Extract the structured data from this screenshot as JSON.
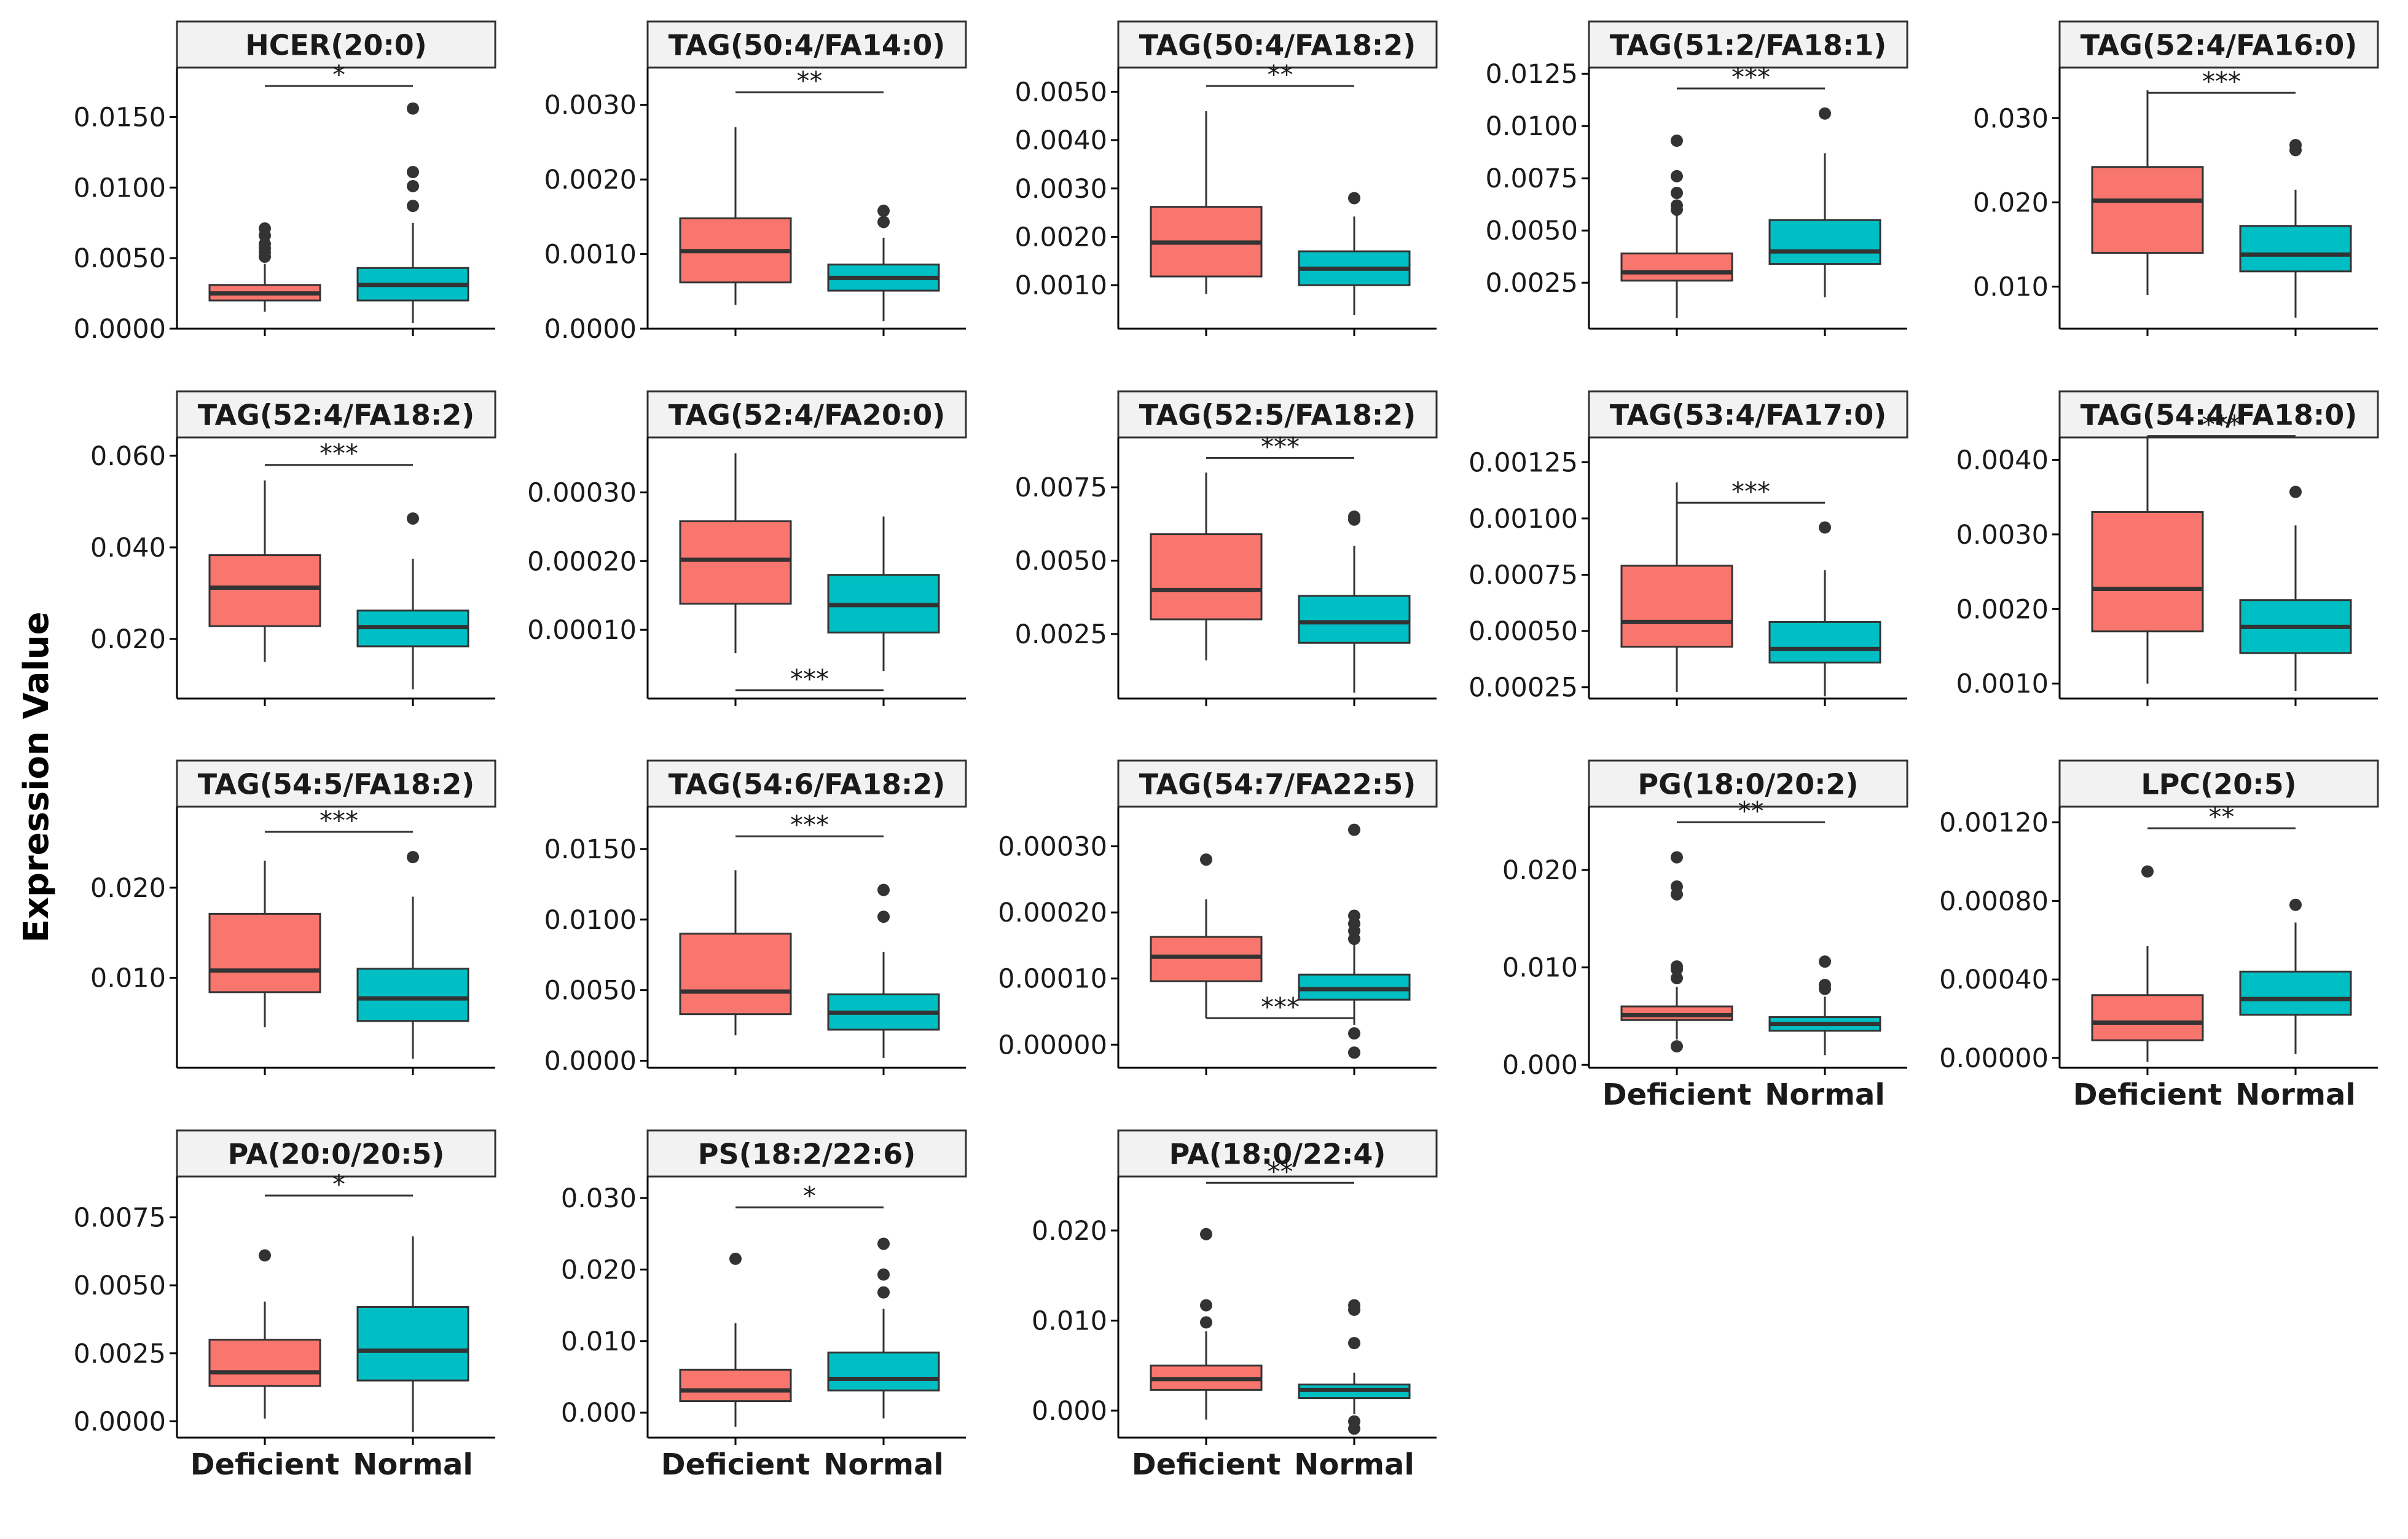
{
  "figure": {
    "ylabel": "Expression Value",
    "groups": [
      "Deficient",
      "Normal"
    ],
    "colors": {
      "deficient": "#F8766D",
      "normal": "#00BFC4"
    }
  },
  "chart_data": [
    {
      "type": "box",
      "title": "HCER(20:0)",
      "ylim": [
        0,
        0.0185
      ],
      "ticks": [
        "0.0000",
        "0.0050",
        "0.0100",
        "0.0150"
      ],
      "categories": [
        "Deficient",
        "Normal"
      ],
      "boxes": [
        {
          "q1": 0.002,
          "median": 0.0025,
          "q3": 0.0031,
          "wlo": 0.0012,
          "whi": 0.0046,
          "outliers": [
            0.0051,
            0.0054,
            0.0057,
            0.006,
            0.0066,
            0.0071
          ]
        },
        {
          "q1": 0.002,
          "median": 0.0031,
          "q3": 0.0043,
          "wlo": 0.0004,
          "whi": 0.0075,
          "outliers": [
            0.0087,
            0.0101,
            0.0111,
            0.0156
          ]
        }
      ],
      "sig": {
        "label": "*",
        "pos": "top",
        "y": 0.0172
      }
    },
    {
      "type": "box",
      "title": "TAG(50:4/FA14:0)",
      "ylim": [
        0,
        0.0035
      ],
      "ticks": [
        "0.0000",
        "0.0010",
        "0.0020",
        "0.0030"
      ],
      "categories": [
        "Deficient",
        "Normal"
      ],
      "boxes": [
        {
          "q1": 0.00062,
          "median": 0.00104,
          "q3": 0.00148,
          "wlo": 0.00032,
          "whi": 0.0027,
          "outliers": []
        },
        {
          "q1": 0.00051,
          "median": 0.00068,
          "q3": 0.00086,
          "wlo": 0.0001,
          "whi": 0.00122,
          "outliers": [
            0.00143,
            0.00158
          ]
        }
      ],
      "sig": {
        "label": "**",
        "pos": "top",
        "y": 0.00317
      }
    },
    {
      "type": "box",
      "title": "TAG(50:4/FA18:2)",
      "ylim": [
        0.0001,
        0.0055
      ],
      "ticks": [
        "0.0010",
        "0.0020",
        "0.0030",
        "0.0040",
        "0.0050"
      ],
      "categories": [
        "Deficient",
        "Normal"
      ],
      "boxes": [
        {
          "q1": 0.00118,
          "median": 0.00188,
          "q3": 0.00262,
          "wlo": 0.00082,
          "whi": 0.0046,
          "outliers": []
        },
        {
          "q1": 0.001,
          "median": 0.00134,
          "q3": 0.0017,
          "wlo": 0.00038,
          "whi": 0.00242,
          "outliers": [
            0.0028
          ]
        }
      ],
      "sig": {
        "label": "**",
        "pos": "top",
        "y": 0.00512
      }
    },
    {
      "type": "box",
      "title": "TAG(51:2/FA18:1)",
      "ylim": [
        0.0003,
        0.0128
      ],
      "ticks": [
        "0.0025",
        "0.0050",
        "0.0075",
        "0.0100",
        "0.0125"
      ],
      "categories": [
        "Deficient",
        "Normal"
      ],
      "boxes": [
        {
          "q1": 0.0026,
          "median": 0.003,
          "q3": 0.0039,
          "wlo": 0.0008,
          "whi": 0.0058,
          "outliers": [
            0.006,
            0.0062,
            0.0068,
            0.0076,
            0.0093
          ]
        },
        {
          "q1": 0.0034,
          "median": 0.004,
          "q3": 0.0055,
          "wlo": 0.0018,
          "whi": 0.0087,
          "outliers": [
            0.0106
          ]
        }
      ],
      "sig": {
        "label": "***",
        "pos": "top",
        "y": 0.0118
      }
    },
    {
      "type": "box",
      "title": "TAG(52:4/FA16:0)",
      "ylim": [
        0.005,
        0.036
      ],
      "ticks": [
        "0.010",
        "0.020",
        "0.030"
      ],
      "categories": [
        "Deficient",
        "Normal"
      ],
      "boxes": [
        {
          "q1": 0.014,
          "median": 0.0202,
          "q3": 0.0242,
          "wlo": 0.009,
          "whi": 0.0333,
          "outliers": []
        },
        {
          "q1": 0.0118,
          "median": 0.0138,
          "q3": 0.0172,
          "wlo": 0.0063,
          "whi": 0.0215,
          "outliers": [
            0.0262,
            0.0268
          ]
        }
      ],
      "sig": {
        "label": "***",
        "pos": "top",
        "y": 0.033
      }
    },
    {
      "type": "box",
      "title": "TAG(52:4/FA18:2)",
      "ylim": [
        0.007,
        0.064
      ],
      "ticks": [
        "0.020",
        "0.040",
        "0.060"
      ],
      "categories": [
        "Deficient",
        "Normal"
      ],
      "boxes": [
        {
          "q1": 0.0228,
          "median": 0.0312,
          "q3": 0.0383,
          "wlo": 0.015,
          "whi": 0.0546,
          "outliers": []
        },
        {
          "q1": 0.0184,
          "median": 0.0226,
          "q3": 0.0262,
          "wlo": 0.009,
          "whi": 0.0375,
          "outliers": [
            0.0463
          ]
        }
      ],
      "sig": {
        "label": "***",
        "pos": "top",
        "y": 0.058
      }
    },
    {
      "type": "box",
      "title": "TAG(52:4/FA20:0)",
      "ylim": [
        0.0,
        0.00038
      ],
      "ticks": [
        "0.00010",
        "0.00020",
        "0.00030"
      ],
      "categories": [
        "Deficient",
        "Normal"
      ],
      "boxes": [
        {
          "q1": 0.000138,
          "median": 0.000202,
          "q3": 0.000258,
          "wlo": 6.6e-05,
          "whi": 0.000357,
          "outliers": []
        },
        {
          "q1": 9.6e-05,
          "median": 0.000136,
          "q3": 0.00018,
          "wlo": 4e-05,
          "whi": 0.000265,
          "outliers": []
        }
      ],
      "sig": {
        "label": "***",
        "pos": "bottom",
        "y": 1.2e-05
      }
    },
    {
      "type": "box",
      "title": "TAG(52:5/FA18:2)",
      "ylim": [
        0.0003,
        0.0092
      ],
      "ticks": [
        "0.0025",
        "0.0050",
        "0.0075"
      ],
      "categories": [
        "Deficient",
        "Normal"
      ],
      "boxes": [
        {
          "q1": 0.003,
          "median": 0.004,
          "q3": 0.0059,
          "wlo": 0.0016,
          "whi": 0.008,
          "outliers": []
        },
        {
          "q1": 0.0022,
          "median": 0.0029,
          "q3": 0.0038,
          "wlo": 0.0005,
          "whi": 0.0055,
          "outliers": [
            0.0064,
            0.0065
          ]
        }
      ],
      "sig": {
        "label": "***",
        "pos": "top",
        "y": 0.0085
      }
    },
    {
      "type": "box",
      "title": "TAG(53:4/FA17:0)",
      "ylim": [
        0.0002,
        0.00136
      ],
      "ticks": [
        "0.00025",
        "0.00050",
        "0.00075",
        "0.00100",
        "0.00125"
      ],
      "categories": [
        "Deficient",
        "Normal"
      ],
      "boxes": [
        {
          "q1": 0.00043,
          "median": 0.00054,
          "q3": 0.00079,
          "wlo": 0.00023,
          "whi": 0.00116,
          "outliers": []
        },
        {
          "q1": 0.00036,
          "median": 0.00042,
          "q3": 0.00054,
          "wlo": 0.00021,
          "whi": 0.00077,
          "outliers": [
            0.00096
          ]
        }
      ],
      "sig": {
        "label": "***",
        "pos": "top",
        "y": 0.00107
      }
    },
    {
      "type": "box",
      "title": "TAG(54:4/FA18:0)",
      "ylim": [
        0.0008,
        0.0043
      ],
      "ticks": [
        "0.0010",
        "0.0020",
        "0.0030",
        "0.0040"
      ],
      "categories": [
        "Deficient",
        "Normal"
      ],
      "boxes": [
        {
          "q1": 0.0017,
          "median": 0.00227,
          "q3": 0.0033,
          "wlo": 0.001,
          "whi": 0.00432,
          "outliers": []
        },
        {
          "q1": 0.00141,
          "median": 0.00176,
          "q3": 0.00212,
          "wlo": 0.0009,
          "whi": 0.00312,
          "outliers": [
            0.00357
          ]
        }
      ],
      "sig": {
        "label": "***",
        "pos": "top",
        "y": 0.00432
      }
    },
    {
      "type": "box",
      "title": "TAG(54:5/FA18:2)",
      "ylim": [
        0.0,
        0.029
      ],
      "ticks": [
        "0.010",
        "0.020"
      ],
      "categories": [
        "Deficient",
        "Normal"
      ],
      "boxes": [
        {
          "q1": 0.0084,
          "median": 0.0108,
          "q3": 0.0171,
          "wlo": 0.0045,
          "whi": 0.023,
          "outliers": []
        },
        {
          "q1": 0.0052,
          "median": 0.0077,
          "q3": 0.011,
          "wlo": 0.001,
          "whi": 0.019,
          "outliers": [
            0.0234
          ]
        }
      ],
      "sig": {
        "label": "***",
        "pos": "top",
        "y": 0.0262
      }
    },
    {
      "type": "box",
      "title": "TAG(54:6/FA18:2)",
      "ylim": [
        -0.0005,
        0.018
      ],
      "ticks": [
        "0.0000",
        "0.0050",
        "0.0100",
        "0.0150"
      ],
      "categories": [
        "Deficient",
        "Normal"
      ],
      "boxes": [
        {
          "q1": 0.0033,
          "median": 0.0049,
          "q3": 0.009,
          "wlo": 0.0018,
          "whi": 0.0135,
          "outliers": []
        },
        {
          "q1": 0.0022,
          "median": 0.0034,
          "q3": 0.0047,
          "wlo": 0.0002,
          "whi": 0.0077,
          "outliers": [
            0.0102,
            0.0121
          ]
        }
      ],
      "sig": {
        "label": "***",
        "pos": "top",
        "y": 0.0159
      }
    },
    {
      "type": "box",
      "title": "TAG(54:7/FA22:5)",
      "ylim": [
        -3.5e-05,
        0.00036
      ],
      "ticks": [
        "0.00000",
        "0.00010",
        "0.00020",
        "0.00030"
      ],
      "categories": [
        "Deficient",
        "Normal"
      ],
      "boxes": [
        {
          "q1": 9.6e-05,
          "median": 0.000133,
          "q3": 0.000163,
          "wlo": 4e-05,
          "whi": 0.00022,
          "outliers": [
            0.00028
          ]
        },
        {
          "q1": 6.8e-05,
          "median": 8.4e-05,
          "q3": 0.000106,
          "wlo": 3e-05,
          "whi": 0.000155,
          "outliers": [
            -1.2e-05,
            1.7e-05,
            0.00016,
            0.000172,
            0.000183,
            0.000195,
            0.000325
          ]
        }
      ],
      "sig": {
        "label": "***",
        "pos": "bottom",
        "y": 4e-05
      }
    },
    {
      "type": "box",
      "title": "PG(18:0/20:2)",
      "ylim": [
        -0.0003,
        0.0265
      ],
      "ticks": [
        "0.000",
        "0.010",
        "0.020"
      ],
      "categories": [
        "Deficient",
        "Normal"
      ],
      "boxes": [
        {
          "q1": 0.0046,
          "median": 0.0051,
          "q3": 0.006,
          "wlo": 0.0026,
          "whi": 0.008,
          "outliers": [
            0.0019,
            0.0089,
            0.0098,
            0.0101,
            0.0175,
            0.0183,
            0.0213
          ]
        },
        {
          "q1": 0.0035,
          "median": 0.0042,
          "q3": 0.0049,
          "wlo": 0.001,
          "whi": 0.007,
          "outliers": [
            0.0078,
            0.0082,
            0.0106
          ]
        }
      ],
      "sig": {
        "label": "**",
        "pos": "top",
        "y": 0.0249
      }
    },
    {
      "type": "box",
      "title": "LPC(20:5)",
      "ylim": [
        -5e-05,
        0.00128
      ],
      "ticks": [
        "0.00000",
        "0.00040",
        "0.00080",
        "0.00120"
      ],
      "categories": [
        "Deficient",
        "Normal"
      ],
      "boxes": [
        {
          "q1": 9e-05,
          "median": 0.00018,
          "q3": 0.00032,
          "wlo": -2e-05,
          "whi": 0.00057,
          "outliers": [
            0.00095
          ]
        },
        {
          "q1": 0.00022,
          "median": 0.0003,
          "q3": 0.00044,
          "wlo": 2e-05,
          "whi": 0.00069,
          "outliers": [
            0.00078
          ]
        }
      ],
      "sig": {
        "label": "**",
        "pos": "top",
        "y": 0.00117
      }
    },
    {
      "type": "box",
      "title": "PA(20:0/20:5)",
      "ylim": [
        -0.0006,
        0.009
      ],
      "ticks": [
        "0.0000",
        "0.0025",
        "0.0050",
        "0.0075"
      ],
      "categories": [
        "Deficient",
        "Normal"
      ],
      "boxes": [
        {
          "q1": 0.0013,
          "median": 0.0018,
          "q3": 0.003,
          "wlo": 0.0001,
          "whi": 0.0044,
          "outliers": [
            0.0061
          ]
        },
        {
          "q1": 0.0015,
          "median": 0.0026,
          "q3": 0.0042,
          "wlo": -0.0004,
          "whi": 0.0068,
          "outliers": []
        }
      ],
      "sig": {
        "label": "*",
        "pos": "top",
        "y": 0.0083
      }
    },
    {
      "type": "box",
      "title": "PS(18:2/22:6)",
      "ylim": [
        -0.0035,
        0.033
      ],
      "ticks": [
        "0.000",
        "0.010",
        "0.020",
        "0.030"
      ],
      "categories": [
        "Deficient",
        "Normal"
      ],
      "boxes": [
        {
          "q1": 0.0016,
          "median": 0.0031,
          "q3": 0.006,
          "wlo": -0.002,
          "whi": 0.0125,
          "outliers": [
            0.0215
          ]
        },
        {
          "q1": 0.0031,
          "median": 0.0047,
          "q3": 0.0084,
          "wlo": -0.0008,
          "whi": 0.0145,
          "outliers": [
            0.0168,
            0.0193,
            0.0236
          ]
        }
      ],
      "sig": {
        "label": "*",
        "pos": "top",
        "y": 0.0287
      }
    },
    {
      "type": "box",
      "title": "PA(18:0/22:4)",
      "ylim": [
        -0.003,
        0.026
      ],
      "ticks": [
        "0.000",
        "0.010",
        "0.020"
      ],
      "categories": [
        "Deficient",
        "Normal"
      ],
      "boxes": [
        {
          "q1": 0.0023,
          "median": 0.0035,
          "q3": 0.005,
          "wlo": -0.001,
          "whi": 0.0088,
          "outliers": [
            0.0098,
            0.0117,
            0.0196
          ]
        },
        {
          "q1": 0.0014,
          "median": 0.0023,
          "q3": 0.0029,
          "wlo": -0.0004,
          "whi": 0.0042,
          "outliers": [
            -0.002,
            -0.0012,
            0.0075,
            0.0112,
            0.0117
          ]
        }
      ],
      "sig": {
        "label": "**",
        "pos": "top",
        "y": 0.0253
      }
    }
  ]
}
